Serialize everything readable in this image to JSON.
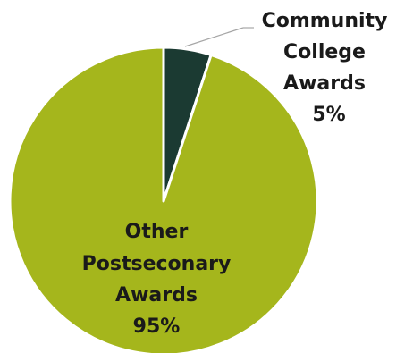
{
  "chart_data": {
    "type": "pie",
    "title": "",
    "slices": [
      {
        "label_lines": [
          "Community",
          "College",
          "Awards"
        ],
        "value": 5,
        "value_label": "5%",
        "color": "#1b3a32"
      },
      {
        "label_lines": [
          "Other",
          "Postseconary",
          "Awards"
        ],
        "value": 95,
        "value_label": "95%",
        "color": "#a5b61c"
      }
    ],
    "start_angle_deg": 0,
    "direction": "clockwise",
    "slice_border_color": "#ffffff",
    "legend": "none"
  }
}
